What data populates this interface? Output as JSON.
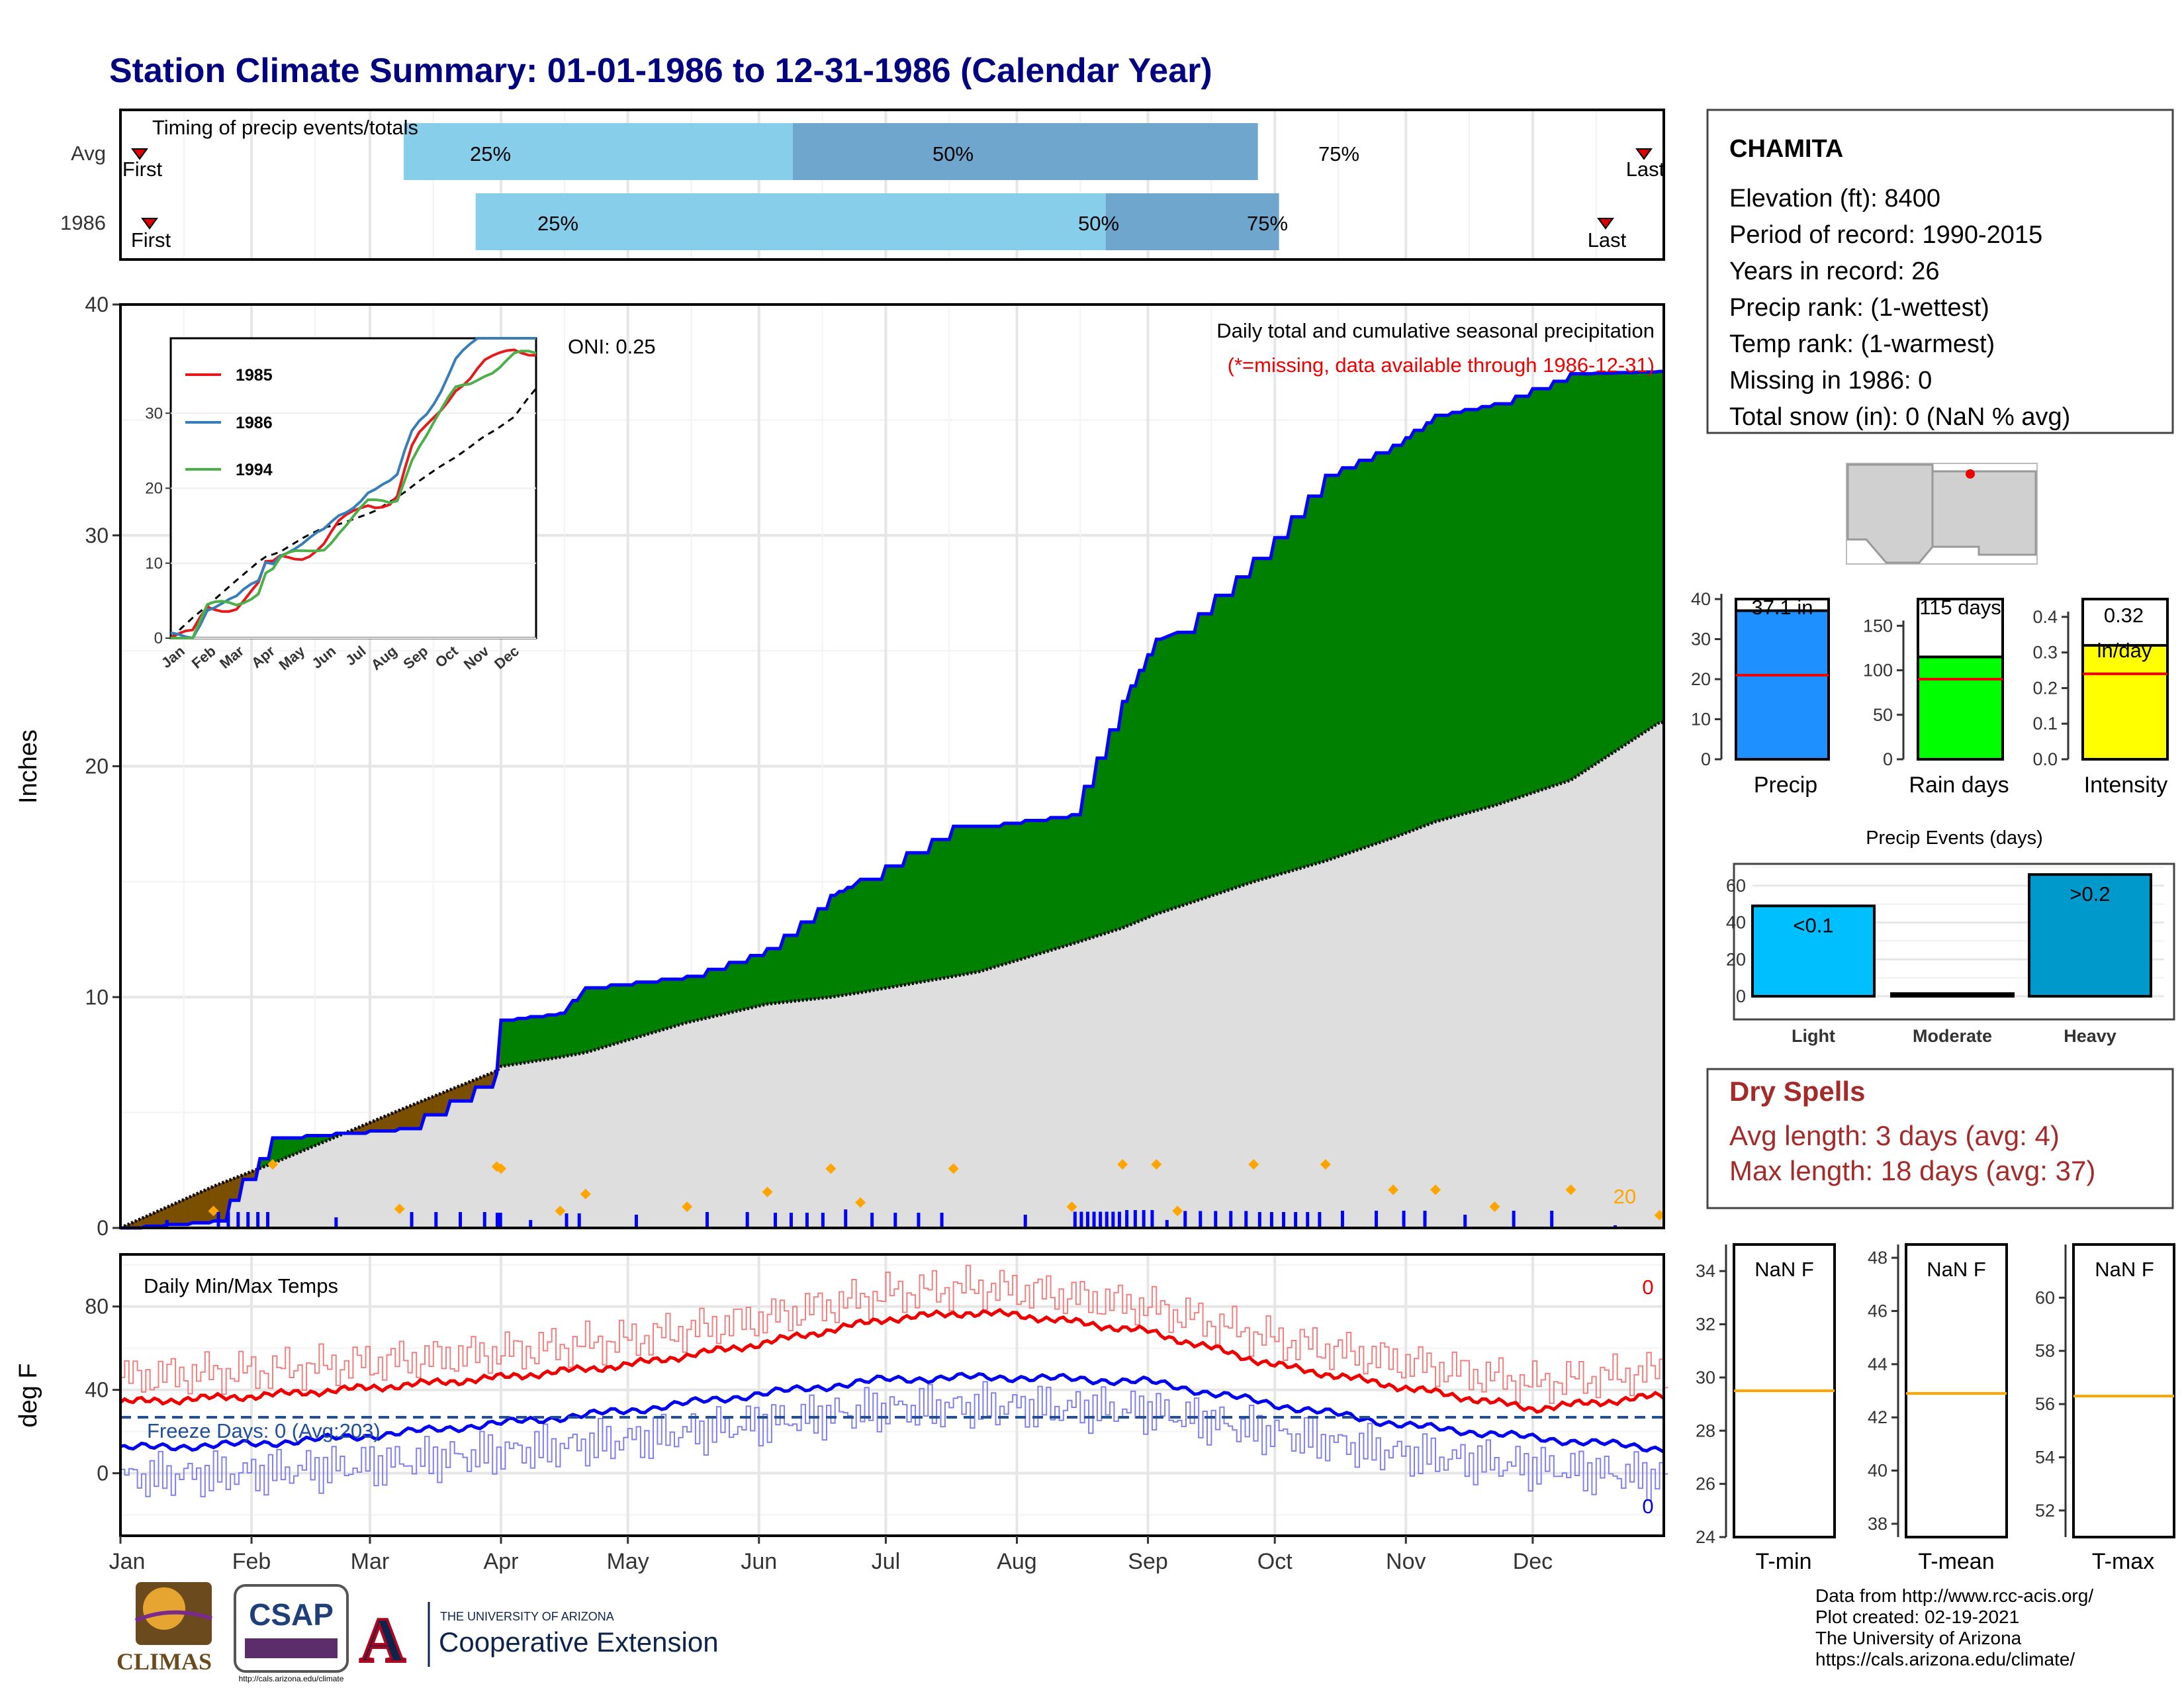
{
  "title": "Station Climate Summary: 01-01-1986 to 12-31-1986 (Calendar Year)",
  "months": [
    "Jan",
    "Feb",
    "Mar",
    "Apr",
    "May",
    "Jun",
    "Jul",
    "Aug",
    "Sep",
    "Oct",
    "Nov",
    "Dec"
  ],
  "timing": {
    "title": "Timing of precip events/totals",
    "row_labels": [
      "Avg",
      "1986"
    ],
    "first_label": "First",
    "last_label": "Last",
    "p25": "25%",
    "p50": "50%",
    "p75": "75%",
    "colors": {
      "light": "#87ceeb",
      "dark": "#6fa6cd",
      "marker": "#dd0000"
    }
  },
  "main": {
    "ylabel": "Inches",
    "yticks": [
      "0",
      "10",
      "20",
      "30",
      "40"
    ],
    "header": "Daily total and cumulative seasonal precipitation",
    "missing_note": "(*=missing, data available through 1986-12-31)",
    "oni": "ONI: 0.25",
    "count_label": "20",
    "colors": {
      "above": "#008000",
      "below": "#7a4f00",
      "avg": "#dedede",
      "line": "#0000ff",
      "diamond": "#ffa500"
    }
  },
  "inset": {
    "legend": [
      "1985",
      "1986",
      "1994"
    ],
    "legend_colors": [
      "#e41a1c",
      "#377eb8",
      "#4daf4a"
    ],
    "yticks": [
      "0",
      "10",
      "20",
      "30"
    ],
    "months": [
      "Jan",
      "Feb",
      "Mar",
      "Apr",
      "May",
      "Jun",
      "Jul",
      "Aug",
      "Sep",
      "Oct",
      "Nov",
      "Dec"
    ]
  },
  "temps": {
    "title": "Daily Min/Max Temps",
    "ylabel": "deg F",
    "yticks": [
      "0",
      "40",
      "80"
    ],
    "freeze": "Freeze Days: 0 (Avg:203)",
    "max_count": "0",
    "min_count": "0"
  },
  "station": {
    "name": "CHAMITA",
    "lines": [
      "Elevation (ft): 8400",
      "Period of record: 1990-2015",
      "Years in record: 26",
      "Precip rank:  (1-wettest)",
      "Temp rank:  (1-warmest)",
      "Missing in 1986: 0",
      "Total snow (in): 0 (NaN % avg)"
    ]
  },
  "bars": {
    "precip": {
      "label": "Precip",
      "value_text": "37.1 in",
      "yticks": [
        "0",
        "10",
        "20",
        "30",
        "40"
      ],
      "color": "#1e90ff"
    },
    "raindays": {
      "label": "Rain days",
      "value_text": "115 days",
      "yticks": [
        "0",
        "50",
        "100",
        "150"
      ],
      "color": "#00ff00"
    },
    "intensity": {
      "label": "Intensity",
      "value_text": "0.32",
      "unit": "in/day",
      "yticks": [
        "0.0",
        "0.1",
        "0.2",
        "0.3",
        "0.4"
      ],
      "color": "#ffff00"
    }
  },
  "events": {
    "title": "Precip Events (days)",
    "yticks": [
      "0",
      "20",
      "40",
      "60"
    ],
    "categories": [
      "Light",
      "Moderate",
      "Heavy"
    ],
    "bar_labels": [
      "<0.1",
      "",
      ">0.2"
    ],
    "colors": [
      "#00bfff",
      "#000000",
      "#0099cc"
    ]
  },
  "dry": {
    "title": "Dry Spells",
    "avg": "Avg length: 3 days (avg: 4)",
    "max": "Max length: 18 days (avg: 37)",
    "color": "#a52a2a"
  },
  "tboxes": [
    {
      "label": "T-min",
      "value": "NaN F",
      "yticks": [
        "24",
        "26",
        "28",
        "30",
        "32",
        "34"
      ]
    },
    {
      "label": "T-mean",
      "value": "NaN F",
      "yticks": [
        "38",
        "40",
        "42",
        "44",
        "46",
        "48"
      ]
    },
    {
      "label": "T-max",
      "value": "NaN F",
      "yticks": [
        "52",
        "54",
        "56",
        "58",
        "60"
      ]
    }
  ],
  "footer": [
    "Data from http://www.rcc-acis.org/",
    "Plot created: 02-19-2021",
    "The University of Arizona",
    "https://cals.arizona.edu/climate/"
  ],
  "logos": {
    "climas": "CLIMAS",
    "csap": "CSAP",
    "csap_url": "http://cals.arizona.edu/climate",
    "ua_top": "THE UNIVERSITY OF ARIZONA",
    "ua_bottom": "Cooperative Extension"
  },
  "chart_data": [
    {
      "type": "bar",
      "title": "Timing of precip events/totals",
      "categories": [
        "Avg",
        "1986"
      ],
      "series": [
        {
          "name": "25%",
          "values": [
            "1986-03-09",
            "1986-03-26"
          ]
        },
        {
          "name": "50%",
          "values": [
            "1986-06-09",
            "1986-08-22"
          ]
        },
        {
          "name": "75%",
          "values": [
            "1986-09-27",
            "1986-10-02"
          ]
        },
        {
          "name": "First",
          "values": [
            "1986-01-05",
            "1986-01-08"
          ]
        },
        {
          "name": "Last",
          "values": [
            "1986-12-30",
            "1986-12-23"
          ]
        }
      ]
    },
    {
      "type": "area",
      "title": "Daily total and cumulative seasonal precipitation",
      "ylabel": "Inches",
      "ylim": [
        0,
        40
      ],
      "x_points": [
        "1986-01-01",
        "1986-01-23",
        "1986-02-06",
        "1986-03-08",
        "1986-03-31",
        "1986-04-01",
        "1986-04-15",
        "1986-04-21",
        "1986-05-15",
        "1986-06-03",
        "1986-06-18",
        "1986-06-25",
        "1986-07-17",
        "1986-07-23",
        "1986-08-14",
        "1986-08-26",
        "1986-09-03",
        "1986-09-08",
        "1986-09-26",
        "1986-10-13",
        "1986-10-29",
        "1986-11-08",
        "1986-11-22",
        "1986-12-10",
        "1986-12-31"
      ],
      "series": [
        {
          "name": "1986",
          "values": [
            0,
            0.3,
            3.9,
            4.3,
            6.7,
            9.0,
            9.3,
            10.4,
            10.9,
            12.1,
            14.4,
            15.1,
            17.4,
            17.4,
            17.9,
            22.8,
            25.5,
            25.8,
            29.0,
            32.6,
            33.9,
            35.2,
            35.7,
            37.0,
            37.1
          ]
        },
        {
          "name": "Avg",
          "values": [
            0,
            1.8,
            2.8,
            5.1,
            6.8,
            7.0,
            7.4,
            7.6,
            8.9,
            9.7,
            10.0,
            10.2,
            10.9,
            11.1,
            12.3,
            13.0,
            13.6,
            13.9,
            15.0,
            15.9,
            16.9,
            17.6,
            18.3,
            19.4,
            21.9
          ]
        }
      ]
    },
    {
      "type": "line",
      "title": "Daily Min/Max Temps",
      "ylabel": "deg F",
      "x_points": [
        "1986-01-01",
        "1986-02-01",
        "1986-03-01",
        "1986-04-01",
        "1986-05-01",
        "1986-06-01",
        "1986-07-01",
        "1986-07-20",
        "1986-08-01",
        "1986-09-01",
        "1986-10-01",
        "1986-11-01",
        "1986-12-01",
        "1986-12-31"
      ],
      "series": [
        {
          "name": "Avg max",
          "values": [
            34,
            37,
            41,
            46,
            52,
            62,
            74,
            77,
            76,
            68,
            52,
            41,
            31,
            37
          ]
        },
        {
          "name": "Avg min",
          "values": [
            12,
            14,
            18,
            24,
            30,
            38,
            45,
            46,
            46,
            44,
            33,
            23,
            17,
            12
          ]
        }
      ]
    },
    {
      "type": "bar",
      "title": "Precip Events (days)",
      "categories": [
        "Light",
        "Moderate",
        "Heavy"
      ],
      "values": [
        49,
        0,
        66
      ]
    },
    {
      "type": "bar",
      "categories": [
        "Precip",
        "Rain days",
        "Intensity"
      ],
      "values": [
        37.1,
        115,
        0.32
      ],
      "averages": [
        21,
        90,
        0.24
      ]
    }
  ]
}
